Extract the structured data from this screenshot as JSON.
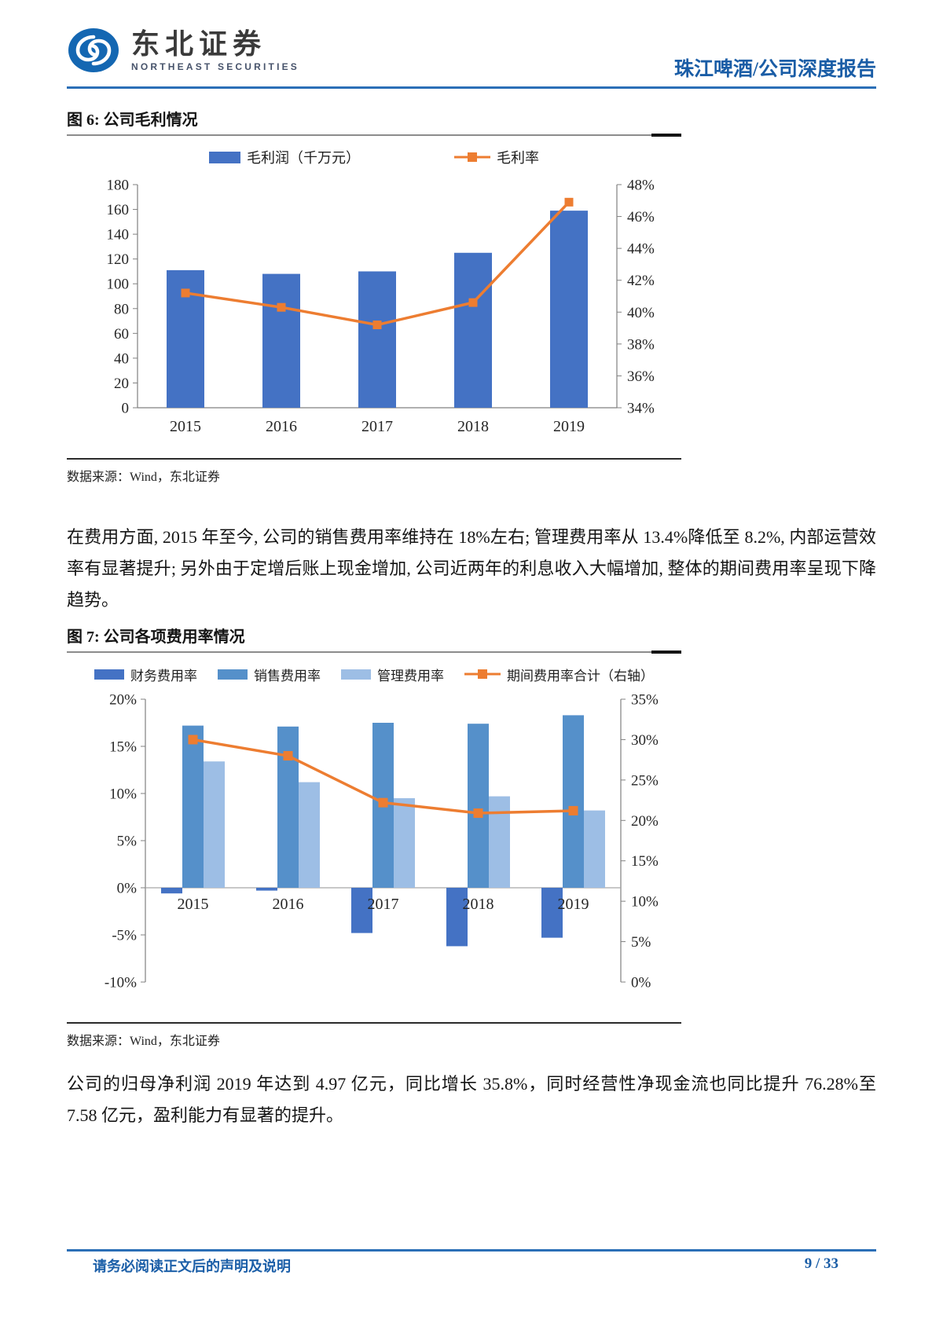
{
  "header": {
    "logo_cn": "东北证券",
    "logo_en": "NORTHEAST SECURITIES",
    "report_label": "珠江啤酒/公司深度报告"
  },
  "figure6": {
    "title": "图 6: 公司毛利情况",
    "source": "数据来源：Wind，东北证券"
  },
  "figure7": {
    "title": "图 7: 公司各项费用率情况",
    "source": "数据来源：Wind，东北证券"
  },
  "paragraph1": "在费用方面, 2015 年至今, 公司的销售费用率维持在 18%左右; 管理费用率从 13.4%降低至 8.2%, 内部运营效率有显著提升; 另外由于定增后账上现金增加, 公司近两年的利息收入大幅增加, 整体的期间费用率呈现下降趋势。",
  "paragraph2": "公司的归母净利润 2019 年达到 4.97 亿元，同比增长 35.8%，同时经营性净现金流也同比提升 76.28%至 7.58 亿元，盈利能力有显著的提升。",
  "footer": {
    "disclaimer": "请务必阅读正文后的声明及说明",
    "page": "9 / 33"
  },
  "colors": {
    "bar_blue": "#4472C4",
    "line_orange": "#ED7D31",
    "sales_blue": "#5590CA",
    "admin_blue": "#9DBEE5",
    "header_blue": "#2B6FB7"
  },
  "chart_data": [
    {
      "id": "gross-profit",
      "type": "bar",
      "categories": [
        "2015",
        "2016",
        "2017",
        "2018",
        "2019"
      ],
      "series": [
        {
          "name": "毛利润（千万元）",
          "type": "bar",
          "axis": "left",
          "color": "#4472C4",
          "values": [
            111,
            108,
            110,
            125,
            159
          ]
        },
        {
          "name": "毛利率",
          "type": "line",
          "axis": "right",
          "color": "#ED7D31",
          "values": [
            41.2,
            40.3,
            39.2,
            40.6,
            46.9
          ]
        }
      ],
      "left_axis": {
        "min": 0,
        "max": 180,
        "step": 20,
        "format": "plain"
      },
      "right_axis": {
        "min": 34,
        "max": 48,
        "step": 2,
        "format": "percent"
      },
      "title": "",
      "xlabel": "",
      "ylabel": "",
      "grid": false,
      "legend_position": "top"
    },
    {
      "id": "expense-ratios",
      "type": "bar",
      "categories": [
        "2015",
        "2016",
        "2017",
        "2018",
        "2019"
      ],
      "series": [
        {
          "name": "财务费用率",
          "type": "bar",
          "axis": "left",
          "color": "#4472C4",
          "values": [
            -0.6,
            -0.3,
            -4.8,
            -6.2,
            -5.3
          ]
        },
        {
          "name": "销售费用率",
          "type": "bar",
          "axis": "left",
          "color": "#5590CA",
          "values": [
            17.2,
            17.1,
            17.5,
            17.4,
            18.3
          ]
        },
        {
          "name": "管理费用率",
          "type": "bar",
          "axis": "left",
          "color": "#9DBEE5",
          "values": [
            13.4,
            11.2,
            9.5,
            9.7,
            8.2
          ]
        },
        {
          "name": "期间费用率合计（右轴）",
          "type": "line",
          "axis": "right",
          "color": "#ED7D31",
          "values": [
            30.0,
            28.0,
            22.2,
            20.9,
            21.2
          ]
        }
      ],
      "left_axis": {
        "min": -10,
        "max": 20,
        "step": 5,
        "format": "percent"
      },
      "right_axis": {
        "min": 0,
        "max": 35,
        "step": 5,
        "format": "percent"
      },
      "title": "",
      "xlabel": "",
      "ylabel": "",
      "grid": false,
      "legend_position": "top"
    }
  ]
}
